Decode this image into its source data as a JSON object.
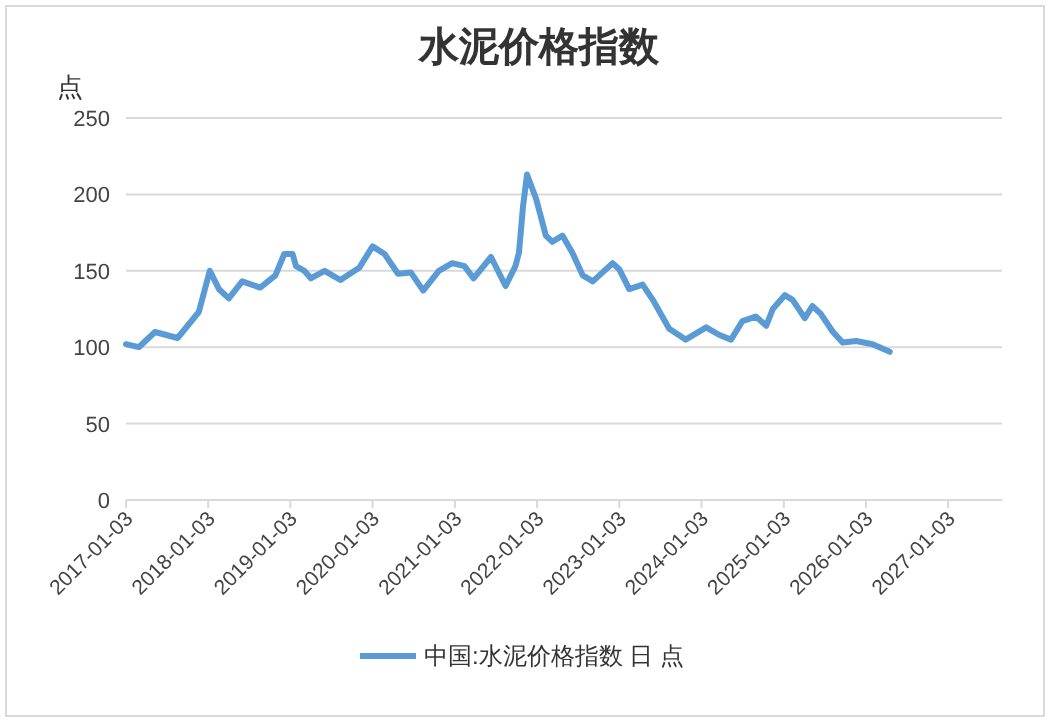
{
  "chart_data": {
    "type": "line",
    "title": "水泥价格指数",
    "ylabel": "点",
    "x": [
      "2017-01-03",
      "2017-03-01",
      "2017-05-12",
      "2017-08-20",
      "2017-11-22",
      "2018-01-10",
      "2018-02-20",
      "2018-04-05",
      "2018-06-03",
      "2018-08-22",
      "2018-10-29",
      "2018-12-07",
      "2019-01-13",
      "2019-01-28",
      "2019-03-06",
      "2019-04-04",
      "2019-06-04",
      "2019-08-13",
      "2019-11-05",
      "2020-01-03",
      "2020-02-26",
      "2020-04-25",
      "2020-06-21",
      "2020-08-15",
      "2020-10-23",
      "2020-12-22",
      "2021-02-15",
      "2021-03-27",
      "2021-06-12",
      "2021-08-16",
      "2021-09-29",
      "2021-10-15",
      "2021-11-01",
      "2021-11-19",
      "2021-12-30",
      "2022-02-11",
      "2022-03-12",
      "2022-04-25",
      "2022-06-08",
      "2022-07-25",
      "2022-09-07",
      "2022-10-21",
      "2022-12-04",
      "2023-01-03",
      "2023-02-16",
      "2023-04-17",
      "2023-06-01",
      "2023-08-13",
      "2023-10-25",
      "2024-01-24",
      "2024-03-23",
      "2024-05-13",
      "2024-07-03",
      "2024-08-31",
      "2024-10-17",
      "2024-11-15",
      "2025-01-07",
      "2025-02-11",
      "2025-04-06",
      "2025-05-10",
      "2025-06-15",
      "2025-08-09",
      "2025-09-22",
      "2025-11-20",
      "2026-02-01",
      "2026-04-19"
    ],
    "series": [
      {
        "name": "中国:水泥价格指数 日 点",
        "color": "#5b9bd5",
        "values": [
          102,
          100,
          110,
          106,
          123,
          150,
          138,
          132,
          143,
          139,
          147,
          161,
          161,
          153,
          150,
          145,
          150,
          144,
          152,
          166,
          161,
          148,
          149,
          137,
          150,
          155,
          153,
          145,
          159,
          140,
          153,
          162,
          192,
          213,
          197,
          173,
          169,
          173,
          162,
          147,
          143,
          149,
          155,
          151,
          138,
          141,
          131,
          112,
          105,
          113,
          108,
          105,
          117,
          120,
          114,
          125,
          134,
          131,
          119,
          127,
          122,
          110,
          103,
          104,
          102,
          97
        ]
      }
    ],
    "xlim": [
      "2017-01-03",
      "2027-08-30"
    ],
    "xticks": [
      "2017-01-03",
      "2018-01-03",
      "2019-01-03",
      "2020-01-03",
      "2021-01-03",
      "2022-01-03",
      "2023-01-03",
      "2024-01-03",
      "2025-01-03",
      "2026-01-03",
      "2027-01-03"
    ],
    "ylim": [
      0,
      250
    ],
    "yticks": [
      0,
      50,
      100,
      150,
      200,
      250
    ],
    "grid": "y",
    "legend": "bottom",
    "marker": "none",
    "line_style": "solid"
  }
}
